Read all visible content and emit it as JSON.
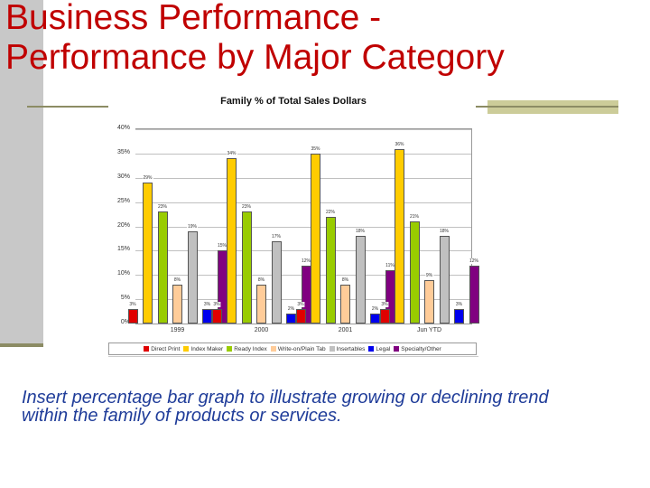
{
  "slide": {
    "title_line1": "Business Performance -",
    "title_line2": "Performance by Major Category",
    "caption": "Insert percentage bar graph to illustrate growing or declining trend within the family of products or services."
  },
  "colors": {
    "title": "#c00000",
    "caption": "#1f3c99",
    "sidebar": "#c8c8c8",
    "accent_rule": "#8c8c64"
  },
  "chart_data": {
    "type": "bar",
    "title": "Family % of Total Sales Dollars",
    "xlabel": "",
    "ylabel": "",
    "ylim": [
      0,
      40
    ],
    "yticks": [
      "0%",
      "5%",
      "10%",
      "15%",
      "20%",
      "25%",
      "30%",
      "35%",
      "40%"
    ],
    "grid": true,
    "legend_position": "bottom",
    "categories": [
      "1999",
      "2000",
      "2001",
      "Jun YTD"
    ],
    "series": [
      {
        "name": "Direct Print",
        "color": "#e00000",
        "values": [
          3,
          3,
          3,
          3
        ]
      },
      {
        "name": "Index Maker",
        "color": "#ffcc00",
        "values": [
          29,
          34,
          35,
          36
        ]
      },
      {
        "name": "Ready Index",
        "color": "#99cc00",
        "values": [
          23,
          23,
          22,
          21
        ]
      },
      {
        "name": "Write-on/Plain Tab",
        "color": "#ffcc99",
        "values": [
          8,
          8,
          8,
          9
        ]
      },
      {
        "name": "Insertables",
        "color": "#c0c0c0",
        "values": [
          19,
          17,
          18,
          18
        ]
      },
      {
        "name": "Legal",
        "color": "#0000ee",
        "values": [
          3,
          2,
          2,
          3
        ]
      },
      {
        "name": "Specialty/Other",
        "color": "#800080",
        "values": [
          15,
          12,
          11,
          12
        ]
      }
    ]
  }
}
